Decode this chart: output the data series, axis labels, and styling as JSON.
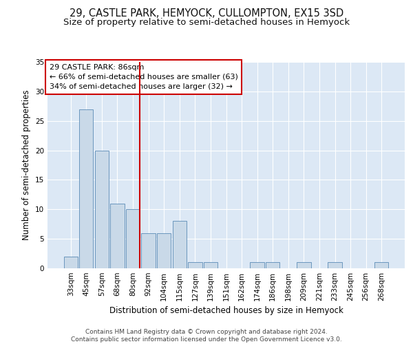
{
  "title1": "29, CASTLE PARK, HEMYOCK, CULLOMPTON, EX15 3SD",
  "title2": "Size of property relative to semi-detached houses in Hemyock",
  "xlabel": "Distribution of semi-detached houses by size in Hemyock",
  "ylabel": "Number of semi-detached properties",
  "categories": [
    "33sqm",
    "45sqm",
    "57sqm",
    "68sqm",
    "80sqm",
    "92sqm",
    "104sqm",
    "115sqm",
    "127sqm",
    "139sqm",
    "151sqm",
    "162sqm",
    "174sqm",
    "186sqm",
    "198sqm",
    "209sqm",
    "221sqm",
    "233sqm",
    "245sqm",
    "256sqm",
    "268sqm"
  ],
  "values": [
    2,
    27,
    20,
    11,
    10,
    6,
    6,
    8,
    1,
    1,
    0,
    0,
    1,
    1,
    0,
    1,
    0,
    1,
    0,
    0,
    1
  ],
  "bar_color": "#c9d9e8",
  "bar_edge_color": "#5a8ab5",
  "subject_bar_index": 4,
  "subject_line_color": "#cc0000",
  "annotation_text": "29 CASTLE PARK: 86sqm\n← 66% of semi-detached houses are smaller (63)\n34% of semi-detached houses are larger (32) →",
  "annotation_box_color": "#ffffff",
  "annotation_box_edge_color": "#cc0000",
  "ylim": [
    0,
    35
  ],
  "yticks": [
    0,
    5,
    10,
    15,
    20,
    25,
    30,
    35
  ],
  "background_color": "#dce8f5",
  "footer_text": "Contains HM Land Registry data © Crown copyright and database right 2024.\nContains public sector information licensed under the Open Government Licence v3.0.",
  "title1_fontsize": 10.5,
  "title2_fontsize": 9.5,
  "xlabel_fontsize": 8.5,
  "ylabel_fontsize": 8.5,
  "tick_fontsize": 7.5,
  "annotation_fontsize": 8,
  "footer_fontsize": 6.5
}
